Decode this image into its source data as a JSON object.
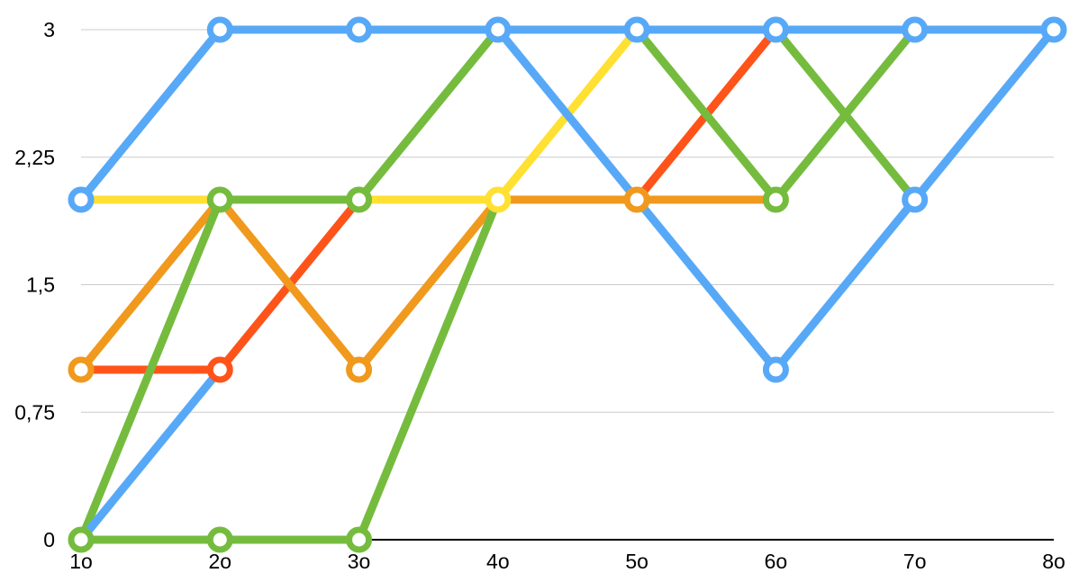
{
  "chart_data": {
    "type": "line",
    "categories": [
      "1o",
      "2o",
      "3o",
      "4o",
      "5o",
      "6o",
      "7o",
      "8o"
    ],
    "y_ticks": [
      "0",
      "0,75",
      "1,5",
      "2,25",
      "3"
    ],
    "ylim": [
      0,
      3
    ],
    "grid": true,
    "legend": "none",
    "series": [
      {
        "color": "#FFE033",
        "values": [
          2,
          2,
          2,
          2,
          3,
          null,
          null,
          null
        ]
      },
      {
        "color": "#FF5319",
        "values": [
          1,
          1,
          2,
          null,
          2,
          3,
          null,
          null
        ]
      },
      {
        "color": "#F0991D",
        "values": [
          1,
          2,
          1,
          2,
          2,
          2,
          null,
          null
        ]
      },
      {
        "color": "#75BC3E",
        "values": [
          0,
          2,
          2,
          3,
          null,
          null,
          null,
          null
        ]
      },
      {
        "color": "#75BC3E",
        "values": [
          0,
          0,
          0,
          2,
          null,
          null,
          null,
          null
        ]
      },
      {
        "color": "#75BC3E",
        "values": [
          null,
          null,
          null,
          null,
          3,
          2,
          3,
          null
        ]
      },
      {
        "color": "#75BC3E",
        "values": [
          null,
          null,
          null,
          null,
          null,
          3,
          2,
          null
        ]
      },
      {
        "color": "#57A9F7",
        "values": [
          0,
          1,
          null,
          null,
          null,
          null,
          null,
          null
        ]
      },
      {
        "color": "#57A9F7",
        "values": [
          2,
          3,
          3,
          3,
          3,
          3,
          3,
          3
        ]
      },
      {
        "color": "#57A9F7",
        "values": [
          null,
          null,
          null,
          3,
          2,
          1,
          2,
          3
        ]
      }
    ],
    "markers": [
      {
        "color": "#75BC3E",
        "x": "1o",
        "y": 0
      },
      {
        "color": "#75BC3E",
        "x": "2o",
        "y": 0
      },
      {
        "color": "#75BC3E",
        "x": "3o",
        "y": 0
      },
      {
        "color": "#FF5319",
        "x": "2o",
        "y": 1
      },
      {
        "color": "#F0991D",
        "x": "1o",
        "y": 1
      },
      {
        "color": "#F0991D",
        "x": "3o",
        "y": 1
      },
      {
        "color": "#57A9F7",
        "x": "6o",
        "y": 1
      },
      {
        "color": "#57A9F7",
        "x": "1o",
        "y": 2
      },
      {
        "color": "#75BC3E",
        "x": "2o",
        "y": 2
      },
      {
        "color": "#75BC3E",
        "x": "3o",
        "y": 2
      },
      {
        "color": "#FFE033",
        "x": "4o",
        "y": 2
      },
      {
        "color": "#F0991D",
        "x": "5o",
        "y": 2
      },
      {
        "color": "#75BC3E",
        "x": "6o",
        "y": 2
      },
      {
        "color": "#57A9F7",
        "x": "7o",
        "y": 2
      },
      {
        "color": "#57A9F7",
        "x": "2o",
        "y": 3
      },
      {
        "color": "#57A9F7",
        "x": "3o",
        "y": 3
      },
      {
        "color": "#57A9F7",
        "x": "4o",
        "y": 3
      },
      {
        "color": "#57A9F7",
        "x": "5o",
        "y": 3
      },
      {
        "color": "#57A9F7",
        "x": "6o",
        "y": 3
      },
      {
        "color": "#57A9F7",
        "x": "7o",
        "y": 3
      },
      {
        "color": "#57A9F7",
        "x": "8o",
        "y": 3
      }
    ]
  },
  "colors": {
    "gridline": "#CCCCCC",
    "axis": "#000000",
    "marker_fill": "#FFFFFF"
  }
}
